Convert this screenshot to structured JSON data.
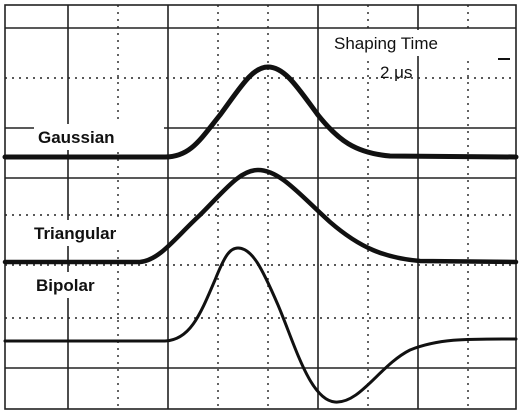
{
  "annotation": {
    "title": "Shaping Time",
    "subtitle": "2 μs"
  },
  "traces": [
    {
      "label": "Gaussian"
    },
    {
      "label": "Triangular"
    },
    {
      "label": "Bipolar"
    }
  ]
}
